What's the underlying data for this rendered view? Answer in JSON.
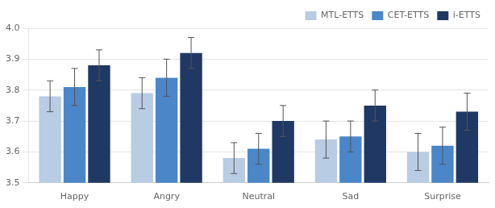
{
  "chart_data": {
    "type": "bar",
    "categories": [
      "Happy",
      "Angry",
      "Neutral",
      "Sad",
      "Surprise"
    ],
    "series": [
      {
        "name": "MTL-ETTS",
        "color": "#b8cce4",
        "values": [
          3.78,
          3.79,
          3.58,
          3.64,
          3.6
        ],
        "errors": [
          0.05,
          0.05,
          0.05,
          0.06,
          0.06
        ]
      },
      {
        "name": "CET-ETTS",
        "color": "#4a86c8",
        "values": [
          3.81,
          3.84,
          3.61,
          3.65,
          3.62
        ],
        "errors": [
          0.06,
          0.06,
          0.05,
          0.05,
          0.06
        ]
      },
      {
        "name": "i-ETTS",
        "color": "#1f3864",
        "values": [
          3.88,
          3.92,
          3.7,
          3.75,
          3.73
        ],
        "errors": [
          0.05,
          0.05,
          0.05,
          0.05,
          0.06
        ]
      }
    ],
    "ylim": [
      3.5,
      4.0
    ],
    "yticks": [
      3.5,
      3.6,
      3.7,
      3.8,
      3.9,
      {
        "value": 4.0,
        "label": "4.0"
      }
    ],
    "grid": true,
    "legend": "upper right"
  }
}
